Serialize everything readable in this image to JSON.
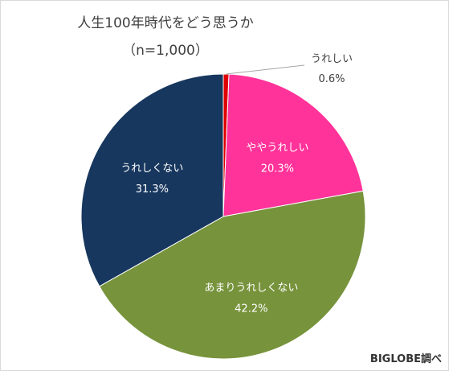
{
  "title_line1": "人生100年時代をどう思うか",
  "title_line2": "（n=1,000）",
  "credit": "BIGLOBE調べ",
  "chart_data": {
    "type": "pie",
    "title": "人生100年時代をどう思うか",
    "subtitle": "（n=1,000）",
    "slices": [
      {
        "label": "うれしい",
        "value": 0.6,
        "value_label": "0.6%",
        "color": "#e00000"
      },
      {
        "label": "ややうれしい",
        "value": 20.3,
        "value_label": "20.3%",
        "color": "#ff3399"
      },
      {
        "label": "あまりうれしくない",
        "value": 42.2,
        "value_label": "42.2%",
        "color": "#77933c"
      },
      {
        "label": "うれしくない",
        "value": 31.3,
        "value_label": "31.3%",
        "color": "#17375e"
      }
    ]
  }
}
